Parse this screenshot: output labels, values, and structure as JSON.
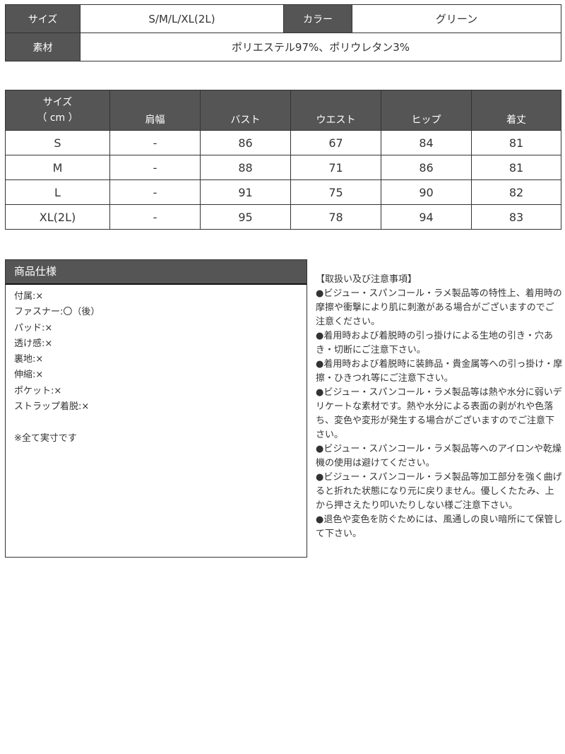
{
  "overview": {
    "size_label": "サイズ",
    "size_value": "S/M/L/XL(2L)",
    "color_label": "カラー",
    "color_value": "グリーン",
    "material_label": "素材",
    "material_value": "ポリエステル97%、ポリウレタン3%"
  },
  "size_table": {
    "corner_line1": "サイズ",
    "corner_line2": "（ cm ）",
    "headers": [
      "肩幅",
      "バスト",
      "ウエスト",
      "ヒップ",
      "着丈"
    ],
    "rows": [
      [
        "S",
        "-",
        "86",
        "67",
        "84",
        "81"
      ],
      [
        "M",
        "-",
        "88",
        "71",
        "86",
        "81"
      ],
      [
        "L",
        "-",
        "91",
        "75",
        "90",
        "82"
      ],
      [
        "XL(2L)",
        "-",
        "95",
        "78",
        "94",
        "83"
      ]
    ]
  },
  "spec": {
    "title": "商品仕様",
    "items": [
      "付属:×",
      "ファスナー:〇（後）",
      "パッド:×",
      "透け感:×",
      "裏地:×",
      "伸縮:×",
      "ポケット:×",
      "ストラップ着脱:×"
    ],
    "note": "※全て実寸です"
  },
  "notes": {
    "title": "【取扱い及び注意事項】",
    "items": [
      "●ビジュー・スパンコール・ラメ製品等の特性上、着用時の摩擦や衝撃により肌に刺激がある場合がございますのでご注意ください。",
      "●着用時および着脱時の引っ掛けによる生地の引き・穴あき・切断にご注意下さい。",
      "●着用時および着脱時に装飾品・貴金属等への引っ掛け・摩擦・ひきつれ等にご注意下さい。",
      "●ビジュー・スパンコール・ラメ製品等は熱や水分に弱いデリケートな素材です。熱や水分による表面の剥がれや色落ち、変色や変形が発生する場合がございますのでご注意下さい。",
      "●ビジュー・スパンコール・ラメ製品等へのアイロンや乾燥機の使用は避けてください。",
      "●ビジュー・スパンコール・ラメ製品等加工部分を強く曲げると折れた状態になり元に戻りません。優しくたたみ、上から押さえたり叩いたりしない様ご注意下さい。",
      "●退色や変色を防ぐためには、風通しの良い暗所にて保管して下さい。"
    ]
  },
  "colors": {
    "header_bg": "#555555",
    "border": "#333333"
  }
}
